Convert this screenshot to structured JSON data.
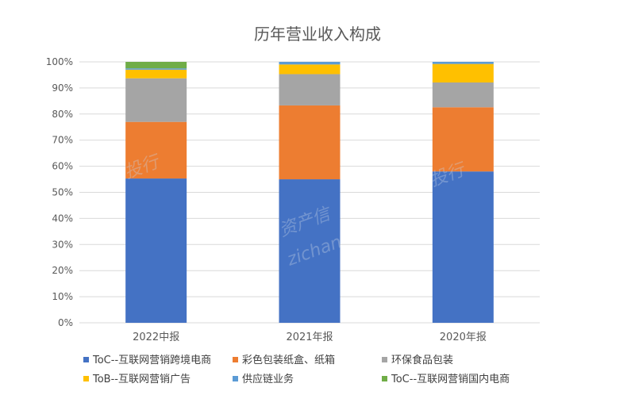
{
  "chart_data": {
    "type": "bar",
    "stacked": true,
    "percent": true,
    "title": "历年营业收入构成",
    "xlabel": "",
    "ylabel": "",
    "ylim": [
      0,
      100
    ],
    "yticks": [
      "0%",
      "10%",
      "20%",
      "30%",
      "40%",
      "50%",
      "60%",
      "70%",
      "80%",
      "90%",
      "100%"
    ],
    "categories": [
      "2022中报",
      "2021年报",
      "2020年报"
    ],
    "series": [
      {
        "name": "ToC--互联网营销跨境电商",
        "color": "#4472C4",
        "values": [
          55.3,
          55.0,
          58.0
        ]
      },
      {
        "name": "彩色包装纸盒、纸箱",
        "color": "#ED7D31",
        "values": [
          21.7,
          28.3,
          24.6
        ]
      },
      {
        "name": "环保食品包装",
        "color": "#A5A5A5",
        "values": [
          16.7,
          12.0,
          9.5
        ]
      },
      {
        "name": "ToB--互联网营销广告",
        "color": "#FFC000",
        "values": [
          3.3,
          3.7,
          7.1
        ]
      },
      {
        "name": "供应链业务",
        "color": "#5B9BD5",
        "values": [
          0.5,
          1.0,
          0.8
        ]
      },
      {
        "name": "ToC--互联网营销国内电商",
        "color": "#70AD47",
        "values": [
          2.5,
          0.0,
          0.0
        ]
      }
    ],
    "legend_position": "bottom",
    "grid": true
  },
  "watermark": {
    "texts": [
      "投行",
      "资产信",
      "zichan",
      "投行"
    ]
  }
}
